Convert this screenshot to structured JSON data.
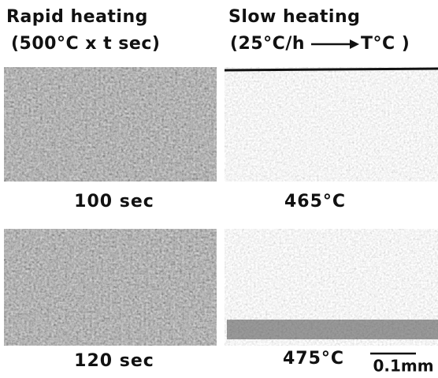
{
  "columns": [
    {
      "title": "Rapid heating",
      "condition": "(500°C x t sec)",
      "panels": [
        {
          "label": "100 sec"
        },
        {
          "label": "120 sec"
        }
      ]
    },
    {
      "title": "Slow heating",
      "condition_start": "(25°C/h",
      "condition_end": "T°C )",
      "panels": [
        {
          "label": "465°C"
        },
        {
          "label": "475°C"
        }
      ]
    }
  ],
  "scale_bar": "0.1mm"
}
